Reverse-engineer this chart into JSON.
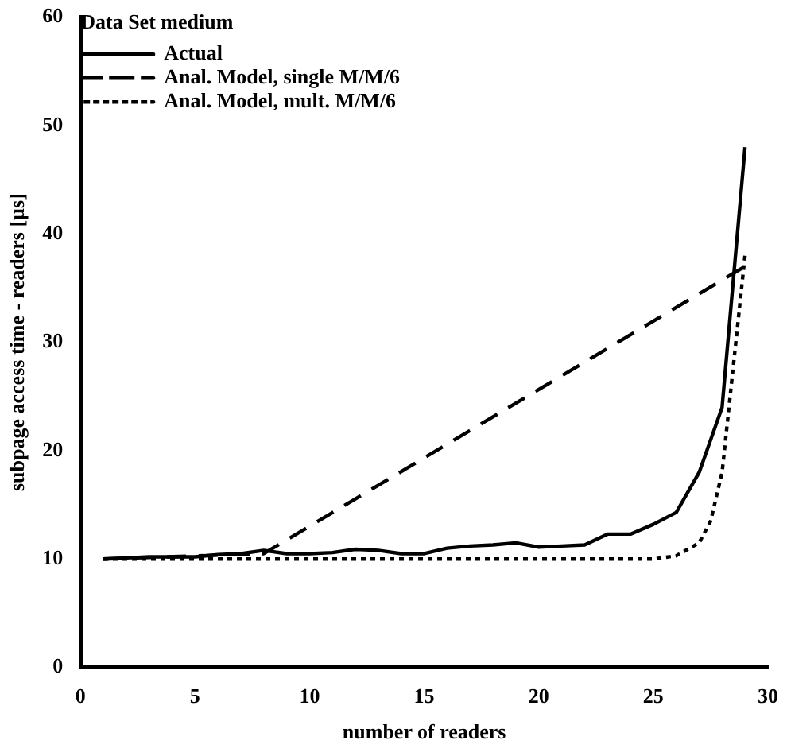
{
  "chart_data": {
    "type": "line",
    "xlabel": "number of readers",
    "ylabel": "subpage access time - readers [µs]",
    "legend_title": "Data Set medium",
    "legend": "top left",
    "marker": "none",
    "grid": false,
    "xlim": [
      0,
      30
    ],
    "xticks": [
      0,
      5,
      10,
      15,
      20,
      25,
      30
    ],
    "ylim": [
      0,
      60
    ],
    "yticks": [
      0,
      10,
      20,
      30,
      40,
      50,
      60
    ],
    "series": [
      {
        "name": "Actual",
        "color": "#000000",
        "line_style": "solid",
        "x": [
          1,
          2,
          3,
          4,
          5,
          6,
          7,
          8,
          9,
          10,
          11,
          12,
          13,
          14,
          15,
          16,
          17,
          18,
          19,
          20,
          21,
          22,
          23,
          24,
          25,
          26,
          27,
          28,
          29
        ],
        "values": [
          10.0,
          10.1,
          10.2,
          10.2,
          10.2,
          10.4,
          10.5,
          10.8,
          10.5,
          10.5,
          10.6,
          10.9,
          10.8,
          10.5,
          10.5,
          11.0,
          11.2,
          11.3,
          11.5,
          11.1,
          11.2,
          11.3,
          12.3,
          12.3,
          13.2,
          14.3,
          18,
          24,
          48
        ]
      },
      {
        "name": "Anal. Model, single M/M/6",
        "color": "#000000",
        "line_style": "dashed",
        "x": [
          1,
          8,
          29
        ],
        "values": [
          10,
          10.5,
          37
        ]
      },
      {
        "name": "Anal. Model, mult. M/M/6",
        "color": "#000000",
        "line_style": "dotted",
        "x": [
          1,
          5,
          10,
          15,
          20,
          25,
          26,
          27,
          27.5,
          28,
          28.5,
          29
        ],
        "values": [
          10,
          10,
          10,
          10,
          10,
          10,
          10.3,
          11.5,
          13.5,
          18,
          28,
          38
        ]
      }
    ]
  }
}
